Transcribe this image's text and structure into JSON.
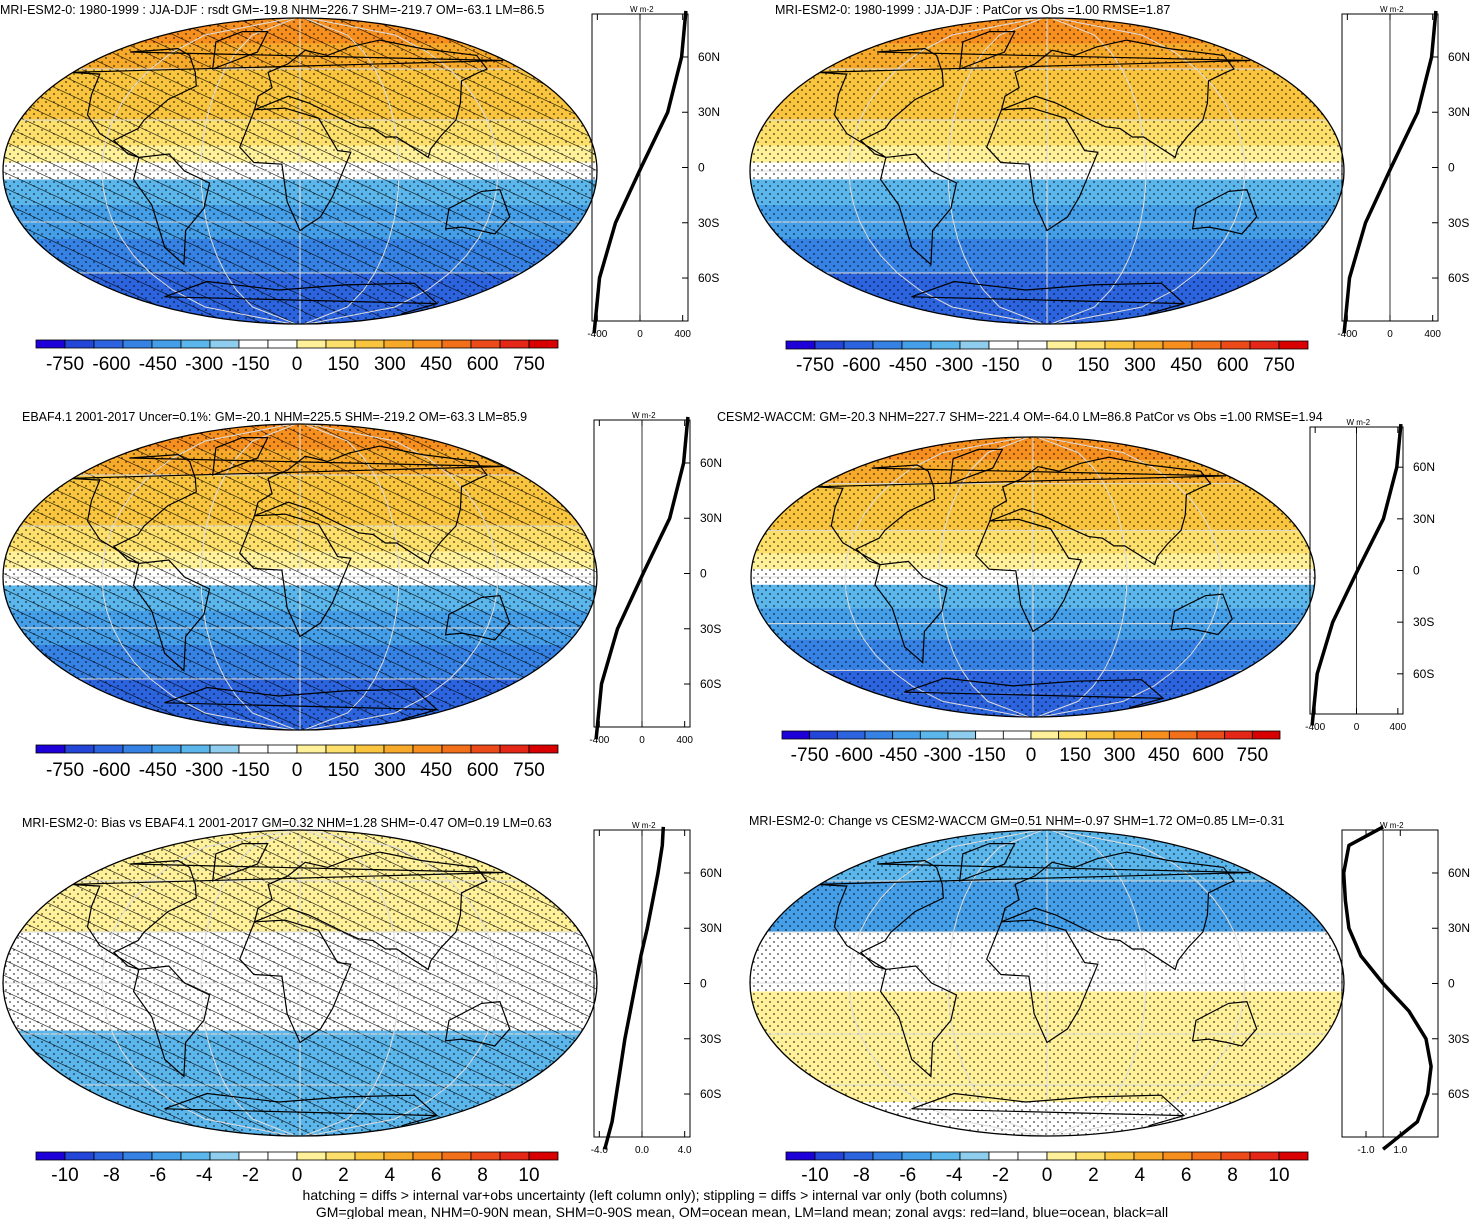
{
  "colors": {
    "palette": [
      "#1e00d8",
      "#2446d8",
      "#2c64e0",
      "#3682e4",
      "#449ee8",
      "#5bb6ec",
      "#8fcdee",
      "#ffffff",
      "#ffffff",
      "#fff19a",
      "#fde06b",
      "#f9c53e",
      "#f7aa2a",
      "#f78f1e",
      "#f2701a",
      "#ec4a19",
      "#e42716",
      "#d80000"
    ],
    "land_line": "#000000",
    "zonal_land": "#ff0000",
    "zonal_ocean": "#0000ff",
    "zonal_all": "#000000"
  },
  "chart_data": [
    {
      "type": "heatmap",
      "title": "MRI-ESM2-0: 1980-1999 : JJA-DJF : rsdt GM=-19.8 NHM=226.7 SHM=-219.7 OM=-63.1 LM=86.5",
      "colorbar_labels": [
        "-750",
        "-600",
        "-450",
        "-300",
        "-150",
        "0",
        "150",
        "300",
        "450",
        "600",
        "750"
      ],
      "zonal": {
        "unit_label": "W m-2",
        "x_ticks": [
          "-400",
          "0",
          "400"
        ],
        "xlim": [
          -450,
          450
        ],
        "y_ticks": [
          "60N",
          "30N",
          "0",
          "30S",
          "60S"
        ],
        "series": [
          {
            "lat": [
              -90,
              -60,
              -30,
              0,
              30,
              60,
              85
            ],
            "values": [
              -430,
              -380,
              -230,
              10,
              260,
              390,
              430
            ]
          }
        ]
      },
      "hatching": true,
      "stippling": true
    },
    {
      "type": "heatmap",
      "title": "MRI-ESM2-0: 1980-1999 : JJA-DJF : PatCor vs Obs =1.00 RMSE=1.87",
      "colorbar_labels": [
        "-750",
        "-600",
        "-450",
        "-300",
        "-150",
        "0",
        "150",
        "300",
        "450",
        "600",
        "750"
      ],
      "zonal": {
        "unit_label": "W m-2",
        "x_ticks": [
          "-400",
          "0",
          "400"
        ],
        "xlim": [
          -450,
          450
        ],
        "y_ticks": [
          "60N",
          "30N",
          "0",
          "30S",
          "60S"
        ],
        "series": [
          {
            "lat": [
              -90,
              -60,
              -30,
              0,
              30,
              60,
              85
            ],
            "values": [
              -430,
              -380,
              -230,
              10,
              260,
              390,
              430
            ]
          }
        ]
      },
      "hatching": false,
      "stippling": true
    },
    {
      "type": "heatmap",
      "title": "EBAF4.1 2001-2017 Uncer=0.1%: GM=-20.1 NHM=225.5 SHM=-219.2 OM=-63.3 LM=85.9",
      "colorbar_labels": [
        "-750",
        "-600",
        "-450",
        "-300",
        "-150",
        "0",
        "150",
        "300",
        "450",
        "600",
        "750"
      ],
      "zonal": {
        "unit_label": "W m-2",
        "x_ticks": [
          "-400",
          "0",
          "400"
        ],
        "xlim": [
          -450,
          450
        ],
        "y_ticks": [
          "60N",
          "30N",
          "0",
          "30S",
          "60S"
        ],
        "series": [
          {
            "lat": [
              -90,
              -60,
              -30,
              0,
              30,
              60,
              85
            ],
            "values": [
              -430,
              -380,
              -230,
              10,
              260,
              390,
              430
            ]
          }
        ]
      },
      "hatching": true,
      "stippling": true
    },
    {
      "type": "heatmap",
      "title": "CESM2-WACCM: GM=-20.3 NHM=227.7 SHM=-221.4 OM=-64.0 LM=86.8 PatCor vs Obs =1.00 RMSE=1.94",
      "colorbar_labels": [
        "-750",
        "-600",
        "-450",
        "-300",
        "-150",
        "0",
        "150",
        "300",
        "450",
        "600",
        "750"
      ],
      "zonal": {
        "unit_label": "W m-2",
        "x_ticks": [
          "-400",
          "0",
          "400"
        ],
        "xlim": [
          -450,
          450
        ],
        "y_ticks": [
          "60N",
          "30N",
          "0",
          "30S",
          "60S"
        ],
        "series": [
          {
            "lat": [
              -90,
              -60,
              -30,
              0,
              30,
              60,
              85
            ],
            "values": [
              -430,
              -380,
              -230,
              10,
              260,
              390,
              430
            ]
          }
        ]
      },
      "hatching": false,
      "stippling": true
    },
    {
      "type": "heatmap",
      "title": "MRI-ESM2-0: Bias vs EBAF4.1 2001-2017 GM=0.32 NHM=1.28 SHM=-0.47 OM=0.19 LM=0.63",
      "colorbar_labels": [
        "-10",
        "-8",
        "-6",
        "-4",
        "-2",
        "0",
        "2",
        "4",
        "6",
        "8",
        "10"
      ],
      "zonal": {
        "unit_label": "W m-2",
        "x_ticks": [
          "-4.0",
          "0.0",
          "4.0"
        ],
        "xlim": [
          -4.5,
          4.5
        ],
        "y_ticks": [
          "60N",
          "30N",
          "0",
          "30S",
          "60S"
        ],
        "series": [
          {
            "name": "",
            "lat": [
              -90,
              -75,
              -60,
              -45,
              -30,
              -15,
              0,
              15,
              30,
              45,
              60,
              75,
              85
            ],
            "values": [
              -3.5,
              -2.8,
              -2.4,
              -2.0,
              -1.6,
              -1.1,
              -0.6,
              -0.1,
              0.5,
              1.0,
              1.5,
              1.9,
              2.0
            ]
          }
        ]
      },
      "hatching": true,
      "stippling": true
    },
    {
      "type": "heatmap",
      "title": "MRI-ESM2-0: Change vs CESM2-WACCM GM=0.51 NHM=-0.97 SHM=1.72 OM=0.85 LM=-0.31",
      "colorbar_labels": [
        "-10",
        "-8",
        "-6",
        "-4",
        "-2",
        "0",
        "2",
        "4",
        "6",
        "8",
        "10"
      ],
      "zonal": {
        "unit_label": "W m-2",
        "x_ticks": [
          "-1.0",
          "1.0"
        ],
        "xlim": [
          -2.4,
          3.2
        ],
        "y_ticks": [
          "60N",
          "30N",
          "0",
          "30S",
          "60S"
        ],
        "series": [
          {
            "lat": [
              -90,
              -75,
              -60,
              -45,
              -30,
              -15,
              0,
              15,
              30,
              45,
              60,
              75,
              85
            ],
            "values": [
              0.0,
              2.0,
              2.6,
              2.8,
              2.5,
              1.5,
              0.0,
              -1.3,
              -2.0,
              -2.2,
              -2.3,
              -2.0,
              0.0
            ]
          }
        ]
      },
      "hatching": false,
      "stippling": true
    }
  ],
  "footer": {
    "line1": "hatching = diffs > internal var+obs uncertainty (left column only); stippling = diffs > internal var only (both columns)",
    "line2": "GM=global mean, NHM=0-90N mean, SHM=0-90S mean, OM=ocean mean, LM=land mean; zonal avgs: red=land, blue=ocean, black=all"
  }
}
